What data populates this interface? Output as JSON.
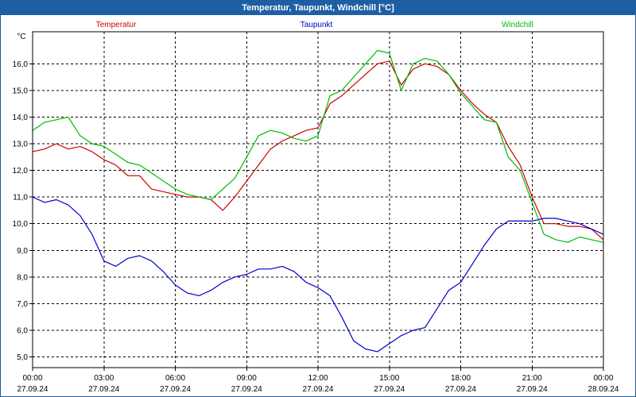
{
  "window": {
    "title": "Temperatur, Taupunkt, Windchill [°C]"
  },
  "chart_data": {
    "type": "line",
    "title": "Temperatur, Taupunkt, Windchill [°C]",
    "ylabel": "°C",
    "ylim": [
      4.6,
      17.2
    ],
    "xlim": [
      0,
      24
    ],
    "grid": true,
    "legend": "top",
    "y_ticks": [
      "5,0",
      "6,0",
      "7,0",
      "8,0",
      "9,0",
      "10,0",
      "11,0",
      "12,0",
      "13,0",
      "14,0",
      "15,0",
      "16,0"
    ],
    "x_ticks": [
      {
        "time": "00:00",
        "date": "27.09.24"
      },
      {
        "time": "03:00",
        "date": "27.09.24"
      },
      {
        "time": "06:00",
        "date": "27.09.24"
      },
      {
        "time": "09:00",
        "date": "27.09.24"
      },
      {
        "time": "12:00",
        "date": "27.09.24"
      },
      {
        "time": "15:00",
        "date": "27.09.24"
      },
      {
        "time": "18:00",
        "date": "27.09.24"
      },
      {
        "time": "21:00",
        "date": "27.09.24"
      },
      {
        "time": "00:00",
        "date": "28.09.24"
      }
    ],
    "series": [
      {
        "name": "Temperatur",
        "color": "#cc0000",
        "points": [
          [
            0,
            12.7
          ],
          [
            0.5,
            12.8
          ],
          [
            1,
            13.0
          ],
          [
            1.5,
            12.8
          ],
          [
            2,
            12.9
          ],
          [
            2.5,
            12.7
          ],
          [
            3,
            12.4
          ],
          [
            3.5,
            12.2
          ],
          [
            4,
            11.8
          ],
          [
            4.5,
            11.8
          ],
          [
            5,
            11.3
          ],
          [
            5.5,
            11.2
          ],
          [
            6,
            11.1
          ],
          [
            6.5,
            11.0
          ],
          [
            7,
            11.0
          ],
          [
            7.5,
            10.9
          ],
          [
            8,
            10.5
          ],
          [
            8.5,
            11.0
          ],
          [
            9,
            11.6
          ],
          [
            9.5,
            12.2
          ],
          [
            10,
            12.8
          ],
          [
            10.5,
            13.1
          ],
          [
            11,
            13.3
          ],
          [
            11.5,
            13.5
          ],
          [
            12,
            13.6
          ],
          [
            12.5,
            14.5
          ],
          [
            13,
            14.8
          ],
          [
            13.5,
            15.2
          ],
          [
            14,
            15.6
          ],
          [
            14.5,
            16.0
          ],
          [
            15,
            16.1
          ],
          [
            15.5,
            15.2
          ],
          [
            16,
            15.8
          ],
          [
            16.5,
            16.0
          ],
          [
            17,
            15.9
          ],
          [
            17.5,
            15.6
          ],
          [
            18,
            15.0
          ],
          [
            18.5,
            14.5
          ],
          [
            19,
            14.1
          ],
          [
            19.5,
            13.8
          ],
          [
            20,
            12.9
          ],
          [
            20.5,
            12.2
          ],
          [
            21,
            11.0
          ],
          [
            21.5,
            10.0
          ],
          [
            22,
            10.0
          ],
          [
            22.5,
            9.9
          ],
          [
            23,
            9.9
          ],
          [
            23.5,
            9.8
          ],
          [
            24,
            9.4
          ]
        ]
      },
      {
        "name": "Taupunkt",
        "color": "#0000cc",
        "points": [
          [
            0,
            11.0
          ],
          [
            0.5,
            10.8
          ],
          [
            1,
            10.9
          ],
          [
            1.5,
            10.7
          ],
          [
            2,
            10.3
          ],
          [
            2.5,
            9.6
          ],
          [
            3,
            8.6
          ],
          [
            3.5,
            8.4
          ],
          [
            4,
            8.7
          ],
          [
            4.5,
            8.8
          ],
          [
            5,
            8.6
          ],
          [
            5.5,
            8.2
          ],
          [
            6,
            7.7
          ],
          [
            6.5,
            7.4
          ],
          [
            7,
            7.3
          ],
          [
            7.5,
            7.5
          ],
          [
            8,
            7.8
          ],
          [
            8.5,
            8.0
          ],
          [
            9,
            8.1
          ],
          [
            9.5,
            8.3
          ],
          [
            10,
            8.3
          ],
          [
            10.5,
            8.4
          ],
          [
            11,
            8.2
          ],
          [
            11.5,
            7.8
          ],
          [
            12,
            7.6
          ],
          [
            12.5,
            7.3
          ],
          [
            13,
            6.5
          ],
          [
            13.5,
            5.6
          ],
          [
            14,
            5.3
          ],
          [
            14.5,
            5.2
          ],
          [
            15,
            5.5
          ],
          [
            15.5,
            5.8
          ],
          [
            16,
            6.0
          ],
          [
            16.5,
            6.1
          ],
          [
            17,
            6.8
          ],
          [
            17.5,
            7.5
          ],
          [
            18,
            7.8
          ],
          [
            18.5,
            8.5
          ],
          [
            19,
            9.2
          ],
          [
            19.5,
            9.8
          ],
          [
            20,
            10.1
          ],
          [
            20.5,
            10.1
          ],
          [
            21,
            10.1
          ],
          [
            21.5,
            10.2
          ],
          [
            22,
            10.2
          ],
          [
            22.5,
            10.1
          ],
          [
            23,
            10.0
          ],
          [
            23.5,
            9.8
          ],
          [
            24,
            9.6
          ]
        ]
      },
      {
        "name": "Windchill",
        "color": "#00bb00",
        "points": [
          [
            0,
            13.5
          ],
          [
            0.5,
            13.8
          ],
          [
            1,
            13.9
          ],
          [
            1.5,
            14.0
          ],
          [
            2,
            13.3
          ],
          [
            2.5,
            13.0
          ],
          [
            3,
            12.9
          ],
          [
            3.5,
            12.6
          ],
          [
            4,
            12.3
          ],
          [
            4.5,
            12.2
          ],
          [
            5,
            11.9
          ],
          [
            5.5,
            11.6
          ],
          [
            6,
            11.3
          ],
          [
            6.5,
            11.1
          ],
          [
            7,
            11.0
          ],
          [
            7.5,
            10.9
          ],
          [
            8,
            11.3
          ],
          [
            8.5,
            11.7
          ],
          [
            9,
            12.5
          ],
          [
            9.5,
            13.3
          ],
          [
            10,
            13.5
          ],
          [
            10.5,
            13.4
          ],
          [
            11,
            13.2
          ],
          [
            11.5,
            13.1
          ],
          [
            12,
            13.3
          ],
          [
            12.5,
            14.8
          ],
          [
            13,
            15.0
          ],
          [
            13.5,
            15.5
          ],
          [
            14,
            16.0
          ],
          [
            14.5,
            16.5
          ],
          [
            15,
            16.4
          ],
          [
            15.5,
            15.0
          ],
          [
            16,
            16.0
          ],
          [
            16.5,
            16.2
          ],
          [
            17,
            16.1
          ],
          [
            17.5,
            15.6
          ],
          [
            18,
            14.9
          ],
          [
            18.5,
            14.4
          ],
          [
            19,
            13.9
          ],
          [
            19.5,
            13.8
          ],
          [
            20,
            12.5
          ],
          [
            20.5,
            12.0
          ],
          [
            21,
            10.8
          ],
          [
            21.5,
            9.6
          ],
          [
            22,
            9.4
          ],
          [
            22.5,
            9.3
          ],
          [
            23,
            9.5
          ],
          [
            23.5,
            9.4
          ],
          [
            24,
            9.3
          ]
        ]
      }
    ]
  }
}
